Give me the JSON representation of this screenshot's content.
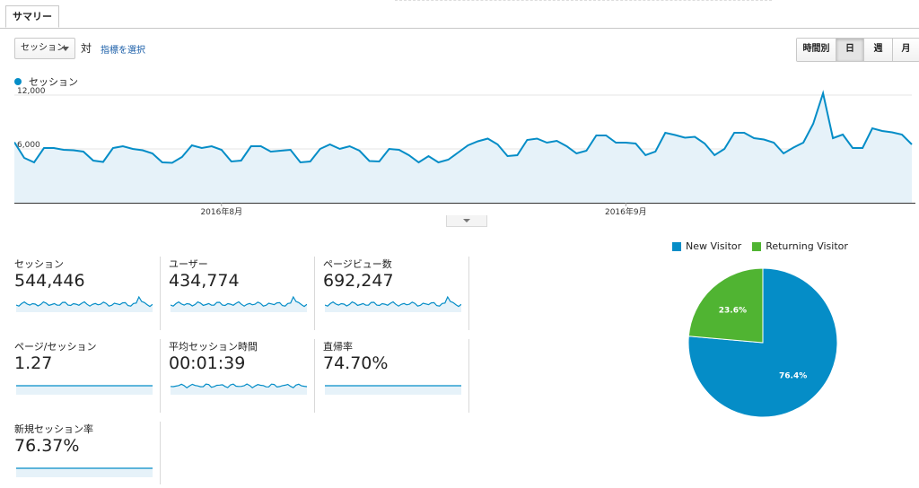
{
  "tabs": {
    "summary": "サマリー"
  },
  "toolbar": {
    "metric": "セッション",
    "vs": "対",
    "choose_metric": "指標を選択",
    "ranges": [
      "時間別",
      "日",
      "週",
      "月"
    ],
    "active_range": "日"
  },
  "colors": {
    "accent": "#058dc7",
    "green": "#50b432",
    "fill": "#e6f2f9"
  },
  "chart_data": [
    {
      "type": "area",
      "series": [
        {
          "name": "セッション",
          "values": [
            6750,
            5000,
            4500,
            6100,
            6100,
            5900,
            5850,
            5700,
            4700,
            4550,
            6100,
            6300,
            6000,
            5850,
            5500,
            4500,
            4450,
            5100,
            6400,
            6100,
            6300,
            5900,
            4600,
            4700,
            6300,
            6300,
            5700,
            5800,
            5900,
            4500,
            4600,
            6000,
            6500,
            6000,
            6300,
            5800,
            4650,
            4600,
            6000,
            5900,
            5300,
            4500,
            5200,
            4500,
            4800,
            5600,
            6400,
            6850,
            7150,
            6500,
            5200,
            5300,
            7000,
            7150,
            6700,
            6900,
            6300,
            5500,
            5800,
            7500,
            7500,
            6700,
            6700,
            6600,
            5300,
            5700,
            7800,
            7550,
            7250,
            7350,
            6600,
            5300,
            6000,
            7800,
            7800,
            7200,
            7050,
            6700,
            5500,
            6150,
            6700,
            8800,
            12200,
            7200,
            7600,
            6100,
            6100,
            8300,
            8000,
            7850,
            7600,
            6500
          ],
          "color": "#058dc7"
        }
      ],
      "ylim": [
        0,
        13000
      ],
      "y_ticks": [
        "12,000",
        "6,000"
      ],
      "x_ticks": [
        "2016年8月",
        "2016年9月"
      ],
      "legend": "top-left"
    },
    {
      "type": "pie",
      "categories": [
        "New Visitor",
        "Returning Visitor"
      ],
      "values": [
        76.4,
        23.6
      ],
      "labels": [
        "76.4%",
        "23.6%"
      ],
      "colors": [
        "#058dc7",
        "#50b432"
      ],
      "legend": "top"
    }
  ],
  "metrics": [
    {
      "label": "セッション",
      "value": "544,446",
      "spark": "spiky"
    },
    {
      "label": "ユーザー",
      "value": "434,774",
      "spark": "spiky"
    },
    {
      "label": "ページビュー数",
      "value": "692,247",
      "spark": "spiky"
    },
    {
      "label": "ページ/セッション",
      "value": "1.27",
      "spark": "flat"
    },
    {
      "label": "平均セッション時間",
      "value": "00:01:39",
      "spark": "wavy"
    },
    {
      "label": "直帰率",
      "value": "74.70%",
      "spark": "flat"
    },
    {
      "label": "新規セッション率",
      "value": "76.37%",
      "spark": "flat"
    }
  ]
}
